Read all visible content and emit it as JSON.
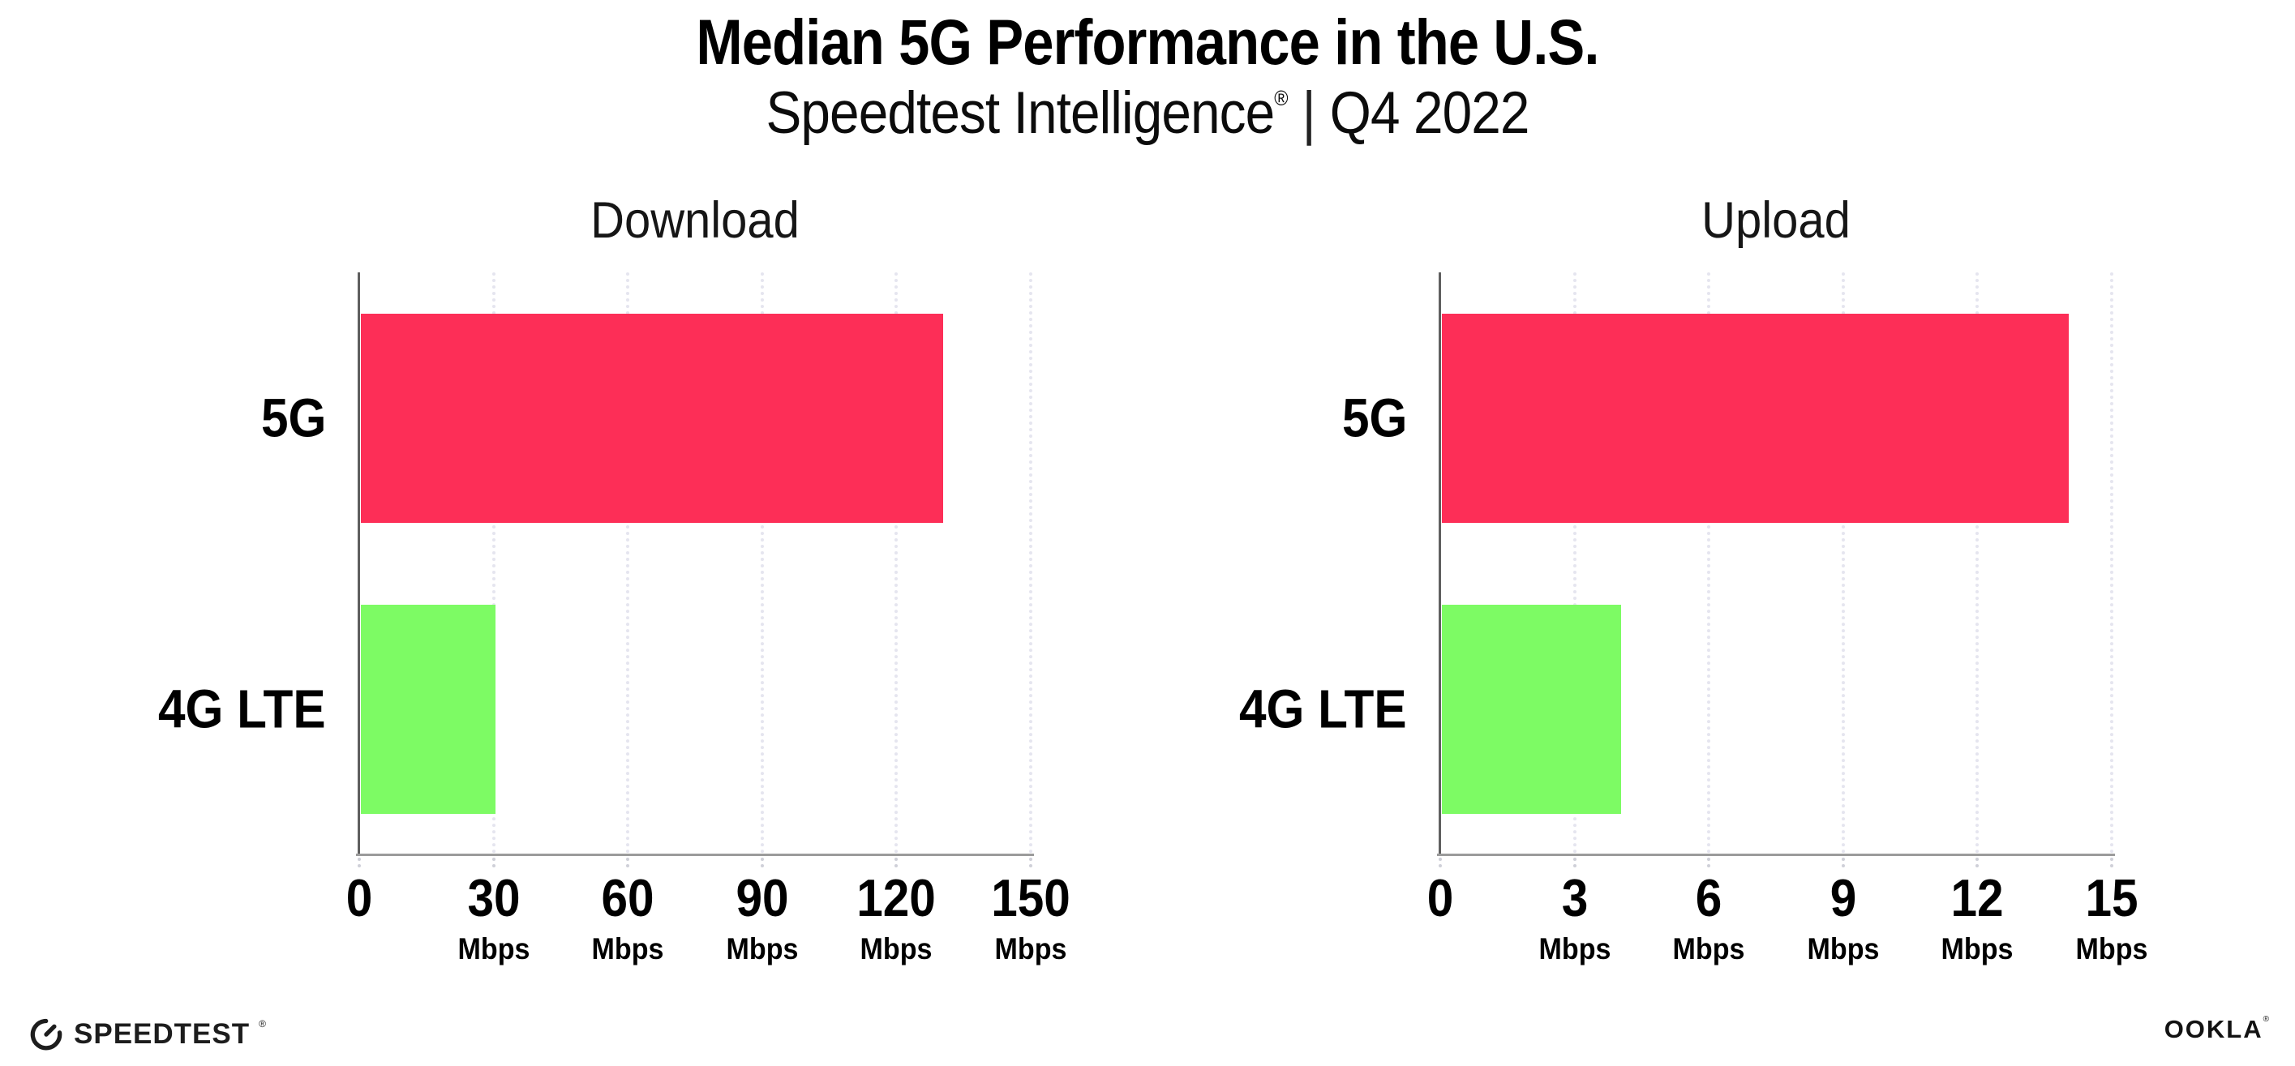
{
  "header": {
    "title": "Median 5G Performance in the U.S.",
    "subtitle_brand": "Speedtest Intelligence",
    "subtitle_reg": "®",
    "subtitle_divider": "|",
    "subtitle_period": "Q4 2022"
  },
  "footer": {
    "speedtest_label": "SPEEDTEST",
    "speedtest_reg": "®",
    "ookla_label": "OOKLA",
    "ookla_reg": "®"
  },
  "colors": {
    "bar_5g": "#FD2E57",
    "bar_4g_lte": "#7DFB64",
    "y_axis": "#5f5f5f",
    "x_axis": "#9b9b9b",
    "gridline": "#e5e5ef",
    "text": "#111111"
  },
  "chart_data": [
    {
      "type": "bar",
      "orientation": "horizontal",
      "title": "Download",
      "categories": [
        "5G",
        "4G LTE"
      ],
      "values": [
        130,
        30
      ],
      "unit": "Mbps",
      "xlim": [
        0,
        150
      ],
      "xticks": [
        0,
        30,
        60,
        90,
        120,
        150
      ],
      "grid": "dotted-vertical",
      "bar_colors": [
        "#FD2E57",
        "#7DFB64"
      ],
      "legend": "none"
    },
    {
      "type": "bar",
      "orientation": "horizontal",
      "title": "Upload",
      "categories": [
        "5G",
        "4G LTE"
      ],
      "values": [
        14,
        4
      ],
      "unit": "Mbps",
      "xlim": [
        0,
        15
      ],
      "xticks": [
        0,
        3,
        6,
        9,
        12,
        15
      ],
      "grid": "dotted-vertical",
      "bar_colors": [
        "#FD2E57",
        "#7DFB64"
      ],
      "legend": "none"
    }
  ]
}
